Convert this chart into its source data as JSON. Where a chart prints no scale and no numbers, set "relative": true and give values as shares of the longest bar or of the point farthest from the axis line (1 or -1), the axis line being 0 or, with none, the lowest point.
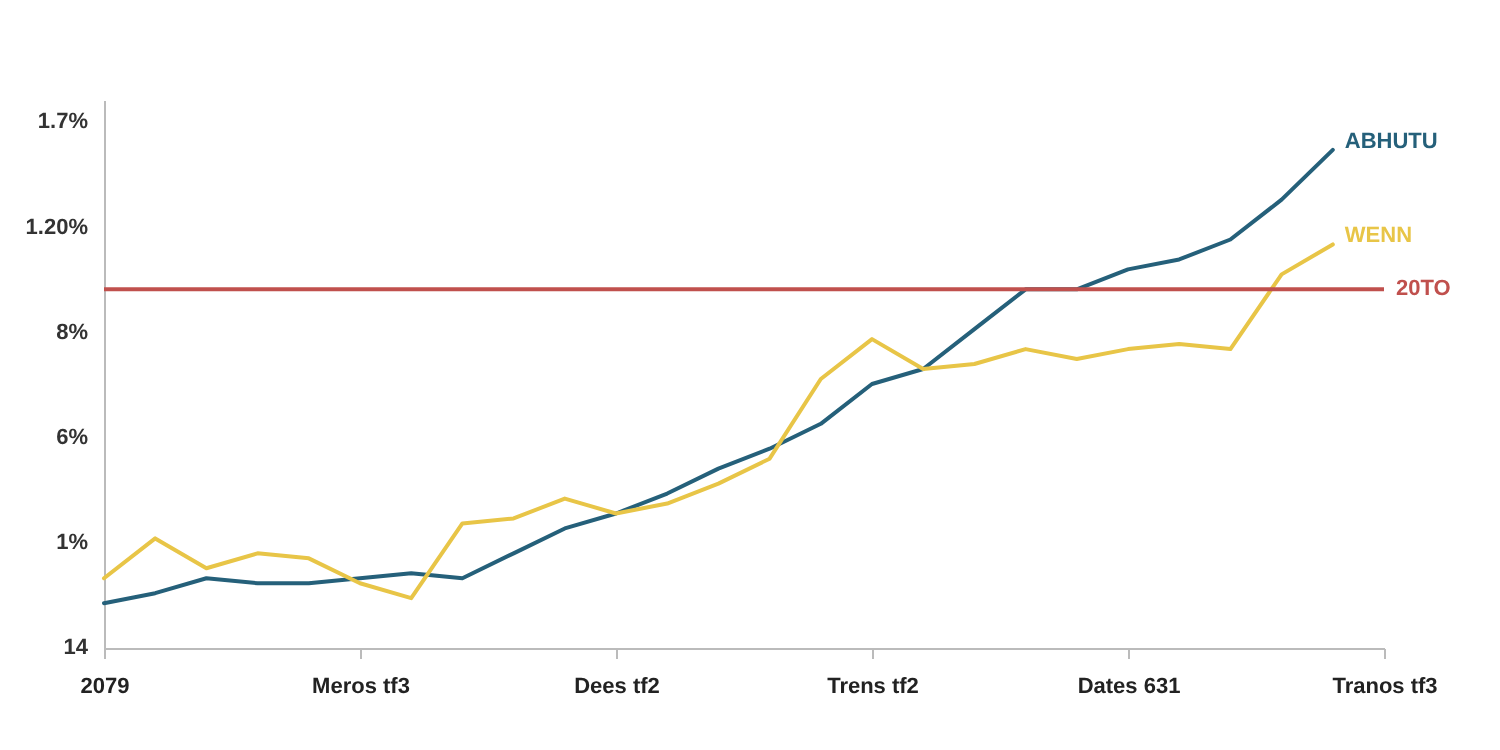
{
  "chart_data": {
    "type": "line",
    "relative": true,
    "categories": [
      "2079",
      null,
      null,
      null,
      null,
      "Meros tf3",
      null,
      null,
      null,
      null,
      "Dees tf2",
      null,
      null,
      null,
      null,
      "Trens tf2",
      null,
      null,
      null,
      null,
      "Dates 631",
      null,
      null,
      null,
      null,
      "Tranos tf3"
    ],
    "legend": false,
    "annotations": [
      "1.7%",
      "1.20%",
      "8%",
      "6%",
      "1%",
      "14"
    ],
    "ref_lines": [
      {
        "axis": "y",
        "value": 0.72,
        "label": "20TO",
        "color": "#c0504d"
      }
    ],
    "series": [
      {
        "name": "ABHUTU",
        "color": "#25607a",
        "values": [
          0.09,
          0.11,
          0.14,
          0.13,
          0.13,
          0.14,
          0.15,
          0.14,
          0.19,
          0.24,
          0.27,
          0.31,
          0.36,
          0.4,
          0.45,
          0.53,
          0.56,
          0.64,
          0.72,
          0.72,
          0.76,
          0.78,
          0.82,
          0.9,
          1,
          null
        ]
      },
      {
        "name": "WENN",
        "color": "#e8c547",
        "values": [
          0.14,
          0.22,
          0.16,
          0.19,
          0.18,
          0.13,
          0.1,
          0.25,
          0.26,
          0.3,
          0.27,
          0.29,
          0.33,
          0.38,
          0.54,
          0.62,
          0.56,
          0.57,
          0.6,
          0.58,
          0.6,
          0.61,
          0.6,
          0.75,
          0.81,
          null
        ]
      }
    ]
  }
}
